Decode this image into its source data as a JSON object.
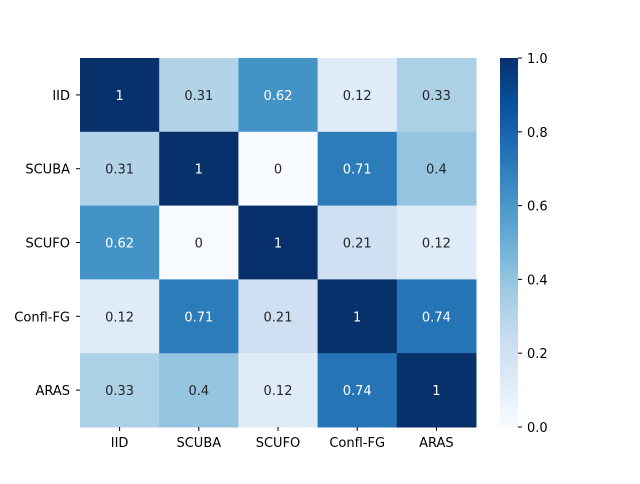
{
  "chart_data": {
    "type": "heatmap",
    "title": "",
    "xlabel": "",
    "ylabel": "",
    "x_labels": [
      "IID",
      "SCUBA",
      "SCUFO",
      "Confl-FG",
      "ARAS"
    ],
    "y_labels": [
      "IID",
      "SCUBA",
      "SCUFO",
      "Confl-FG",
      "ARAS"
    ],
    "values": [
      [
        1,
        0.31,
        0.62,
        0.12,
        0.33
      ],
      [
        0.31,
        1,
        0,
        0.71,
        0.4
      ],
      [
        0.62,
        0,
        1,
        0.21,
        0.12
      ],
      [
        0.12,
        0.71,
        0.21,
        1,
        0.74
      ],
      [
        0.33,
        0.4,
        0.12,
        0.74,
        1
      ]
    ],
    "cell_labels": [
      [
        "1",
        "0.31",
        "0.62",
        "0.12",
        "0.33"
      ],
      [
        "0.31",
        "1",
        "0",
        "0.71",
        "0.4"
      ],
      [
        "0.62",
        "0",
        "1",
        "0.21",
        "0.12"
      ],
      [
        "0.12",
        "0.71",
        "0.21",
        "1",
        "0.74"
      ],
      [
        "0.33",
        "0.4",
        "0.12",
        "0.74",
        "1"
      ]
    ],
    "colorbar": {
      "vmin": 0.0,
      "vmax": 1.0,
      "ticks": [
        0.0,
        0.2,
        0.4,
        0.6,
        0.8,
        1.0
      ],
      "tick_labels": [
        "0.0",
        "0.2",
        "0.4",
        "0.6",
        "0.8",
        "1.0"
      ],
      "colormap": "Blues"
    }
  },
  "colors": {
    "colormap_stops": [
      "#f7fbff",
      "#deebf7",
      "#c6dbef",
      "#9ecae1",
      "#6baed6",
      "#4292c6",
      "#2171b5",
      "#08519c",
      "#08306b"
    ],
    "text_dark": "#262626",
    "text_light": "#ffffff",
    "axis": "#000000",
    "background": "#ffffff"
  }
}
